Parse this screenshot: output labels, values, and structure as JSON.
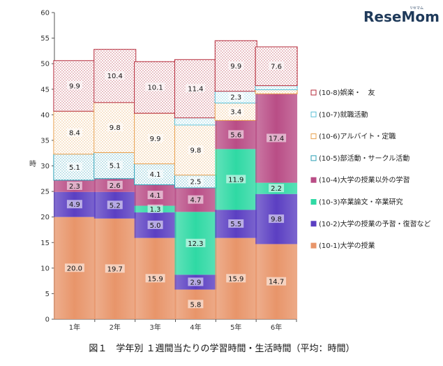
{
  "brand": {
    "name": "ReseMom",
    "kana": "リセマム"
  },
  "caption": "図１　学年別 １週間当たりの学習時間・生活時間（平均：時間）",
  "chart_data": {
    "type": "bar",
    "stacked": true,
    "ylabel": "時",
    "ylim": [
      0,
      60
    ],
    "yticks": [
      0,
      5,
      10,
      15,
      20,
      25,
      30,
      35,
      40,
      45,
      50,
      55,
      60
    ],
    "categories": [
      "1年",
      "2年",
      "3年",
      "4年",
      "5年",
      "6年"
    ],
    "legend_position": "right",
    "series": [
      {
        "name": "(10-1)大学の授業",
        "color": "#e8956a",
        "pattern": "gradient",
        "values": [
          20.0,
          19.7,
          15.9,
          5.8,
          15.9,
          14.7
        ],
        "labels": [
          "20.0",
          "19.7",
          "15.9",
          "5.8",
          "15.9",
          "14.7"
        ]
      },
      {
        "name": "(10-2)大学の授業の予習・復習など",
        "color": "#5b3fc2",
        "pattern": "gradient",
        "values": [
          4.9,
          5.2,
          5.0,
          2.9,
          5.5,
          9.8
        ],
        "labels": [
          "4.9",
          "5.2",
          "5.0",
          "2.9",
          "5.5",
          "9.8"
        ]
      },
      {
        "name": "(10-3)卒業論文・卒業研究",
        "color": "#2fd9a4",
        "pattern": "gradient",
        "values": [
          0,
          0,
          1.3,
          12.3,
          11.9,
          2.2
        ],
        "labels": [
          "",
          "",
          "1.3",
          "12.3",
          "11.9",
          "2.2"
        ]
      },
      {
        "name": "(10-4)大学の授業以外の学習",
        "color": "#b94d86",
        "pattern": "gradient",
        "values": [
          2.3,
          2.6,
          4.1,
          4.7,
          5.6,
          17.4
        ],
        "labels": [
          "2.3",
          "2.6",
          "4.1",
          "4.7",
          "5.6",
          "17.4"
        ]
      },
      {
        "name": "(10-5)部活動・サークル活動",
        "color": "#2a9fb5",
        "pattern": "dots",
        "values": [
          5.1,
          5.1,
          4.1,
          2.5,
          0,
          0
        ],
        "labels": [
          "5.1",
          "5.1",
          "4.1",
          "2.5",
          "",
          ""
        ]
      },
      {
        "name": "(10-6)アルバイト・定職",
        "color": "#e8a04e",
        "pattern": "dots",
        "values": [
          8.4,
          9.8,
          9.9,
          9.8,
          3.4,
          0.8
        ],
        "labels": [
          "8.4",
          "9.8",
          "9.9",
          "9.8",
          "3.4",
          ""
        ]
      },
      {
        "name": "(10-7)就職活動",
        "color": "#5bc0d6",
        "pattern": "dots",
        "values": [
          0,
          0,
          0,
          1.4,
          2.3,
          0.8
        ],
        "labels": [
          "",
          "",
          "",
          "",
          "2.3",
          ""
        ]
      },
      {
        "name": "(10-8)娯楽・　友",
        "color": "#b52a3a",
        "pattern": "dots",
        "values": [
          9.9,
          10.4,
          10.1,
          11.4,
          9.9,
          7.6
        ],
        "labels": [
          "9.9",
          "10.4",
          "10.1",
          "11.4",
          "9.9",
          "7.6"
        ]
      }
    ],
    "legend_order": [
      7,
      6,
      5,
      4,
      3,
      2,
      1,
      0
    ]
  }
}
